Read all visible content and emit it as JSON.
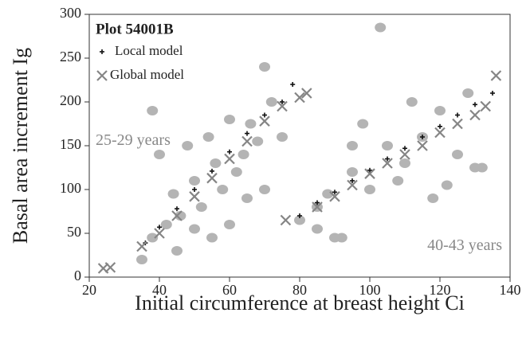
{
  "chart_data": {
    "type": "scatter",
    "xlabel": "Initial circumference at breast height Ci",
    "ylabel": "Basal area increment Ig",
    "legend_title": "Plot 54001B",
    "legend": "upper left",
    "annotations": [
      "25-29 years",
      "40-43 years"
    ],
    "xlim": [
      20,
      140
    ],
    "xticks": [
      20,
      40,
      60,
      80,
      100,
      120,
      140
    ],
    "ylim": [
      0,
      300
    ],
    "yticks": [
      0,
      50,
      100,
      150,
      200,
      250,
      300
    ],
    "series": [
      {
        "color": "#b4b4b4",
        "marker": "ellipse",
        "x": [
          35,
          38,
          40,
          42,
          44,
          46,
          48,
          50,
          52,
          54,
          56,
          58,
          60,
          62,
          64,
          66,
          68,
          70,
          72,
          38,
          45,
          50,
          55,
          60,
          65,
          70,
          75,
          85,
          90,
          95,
          100,
          105,
          110,
          115,
          120,
          125,
          130,
          103,
          88,
          92,
          98,
          108,
          118,
          128,
          95,
          112,
          122,
          132,
          80,
          85
        ],
        "values": [
          20,
          45,
          140,
          60,
          95,
          70,
          150,
          110,
          80,
          160,
          130,
          100,
          180,
          120,
          140,
          175,
          155,
          240,
          200,
          190,
          30,
          55,
          45,
          60,
          90,
          100,
          160,
          55,
          45,
          120,
          100,
          150,
          130,
          160,
          190,
          140,
          125,
          285,
          95,
          45,
          175,
          110,
          90,
          210,
          150,
          200,
          105,
          125,
          65,
          80
        ]
      },
      {
        "name": "Local model",
        "color": "#111111",
        "marker": "plus",
        "x": [
          36,
          40,
          45,
          50,
          55,
          60,
          65,
          70,
          75,
          78,
          80,
          85,
          90,
          95,
          100,
          105,
          110,
          115,
          120,
          125,
          130,
          135
        ],
        "values": [
          39,
          57,
          78,
          100,
          121,
          143,
          164,
          185,
          200,
          220,
          70,
          85,
          97,
          110,
          122,
          135,
          147,
          160,
          172,
          185,
          197,
          210
        ]
      },
      {
        "name": "Global model",
        "color": "#858585",
        "marker": "x",
        "x": [
          24,
          26,
          35,
          40,
          45,
          50,
          55,
          60,
          65,
          70,
          75,
          80,
          82,
          76,
          85,
          90,
          95,
          100,
          105,
          110,
          115,
          120,
          125,
          130,
          133,
          136
        ],
        "values": [
          10,
          11,
          35,
          50,
          70,
          92,
          113,
          135,
          155,
          178,
          195,
          205,
          210,
          65,
          80,
          92,
          105,
          118,
          130,
          140,
          150,
          165,
          175,
          185,
          195,
          230
        ]
      }
    ]
  }
}
